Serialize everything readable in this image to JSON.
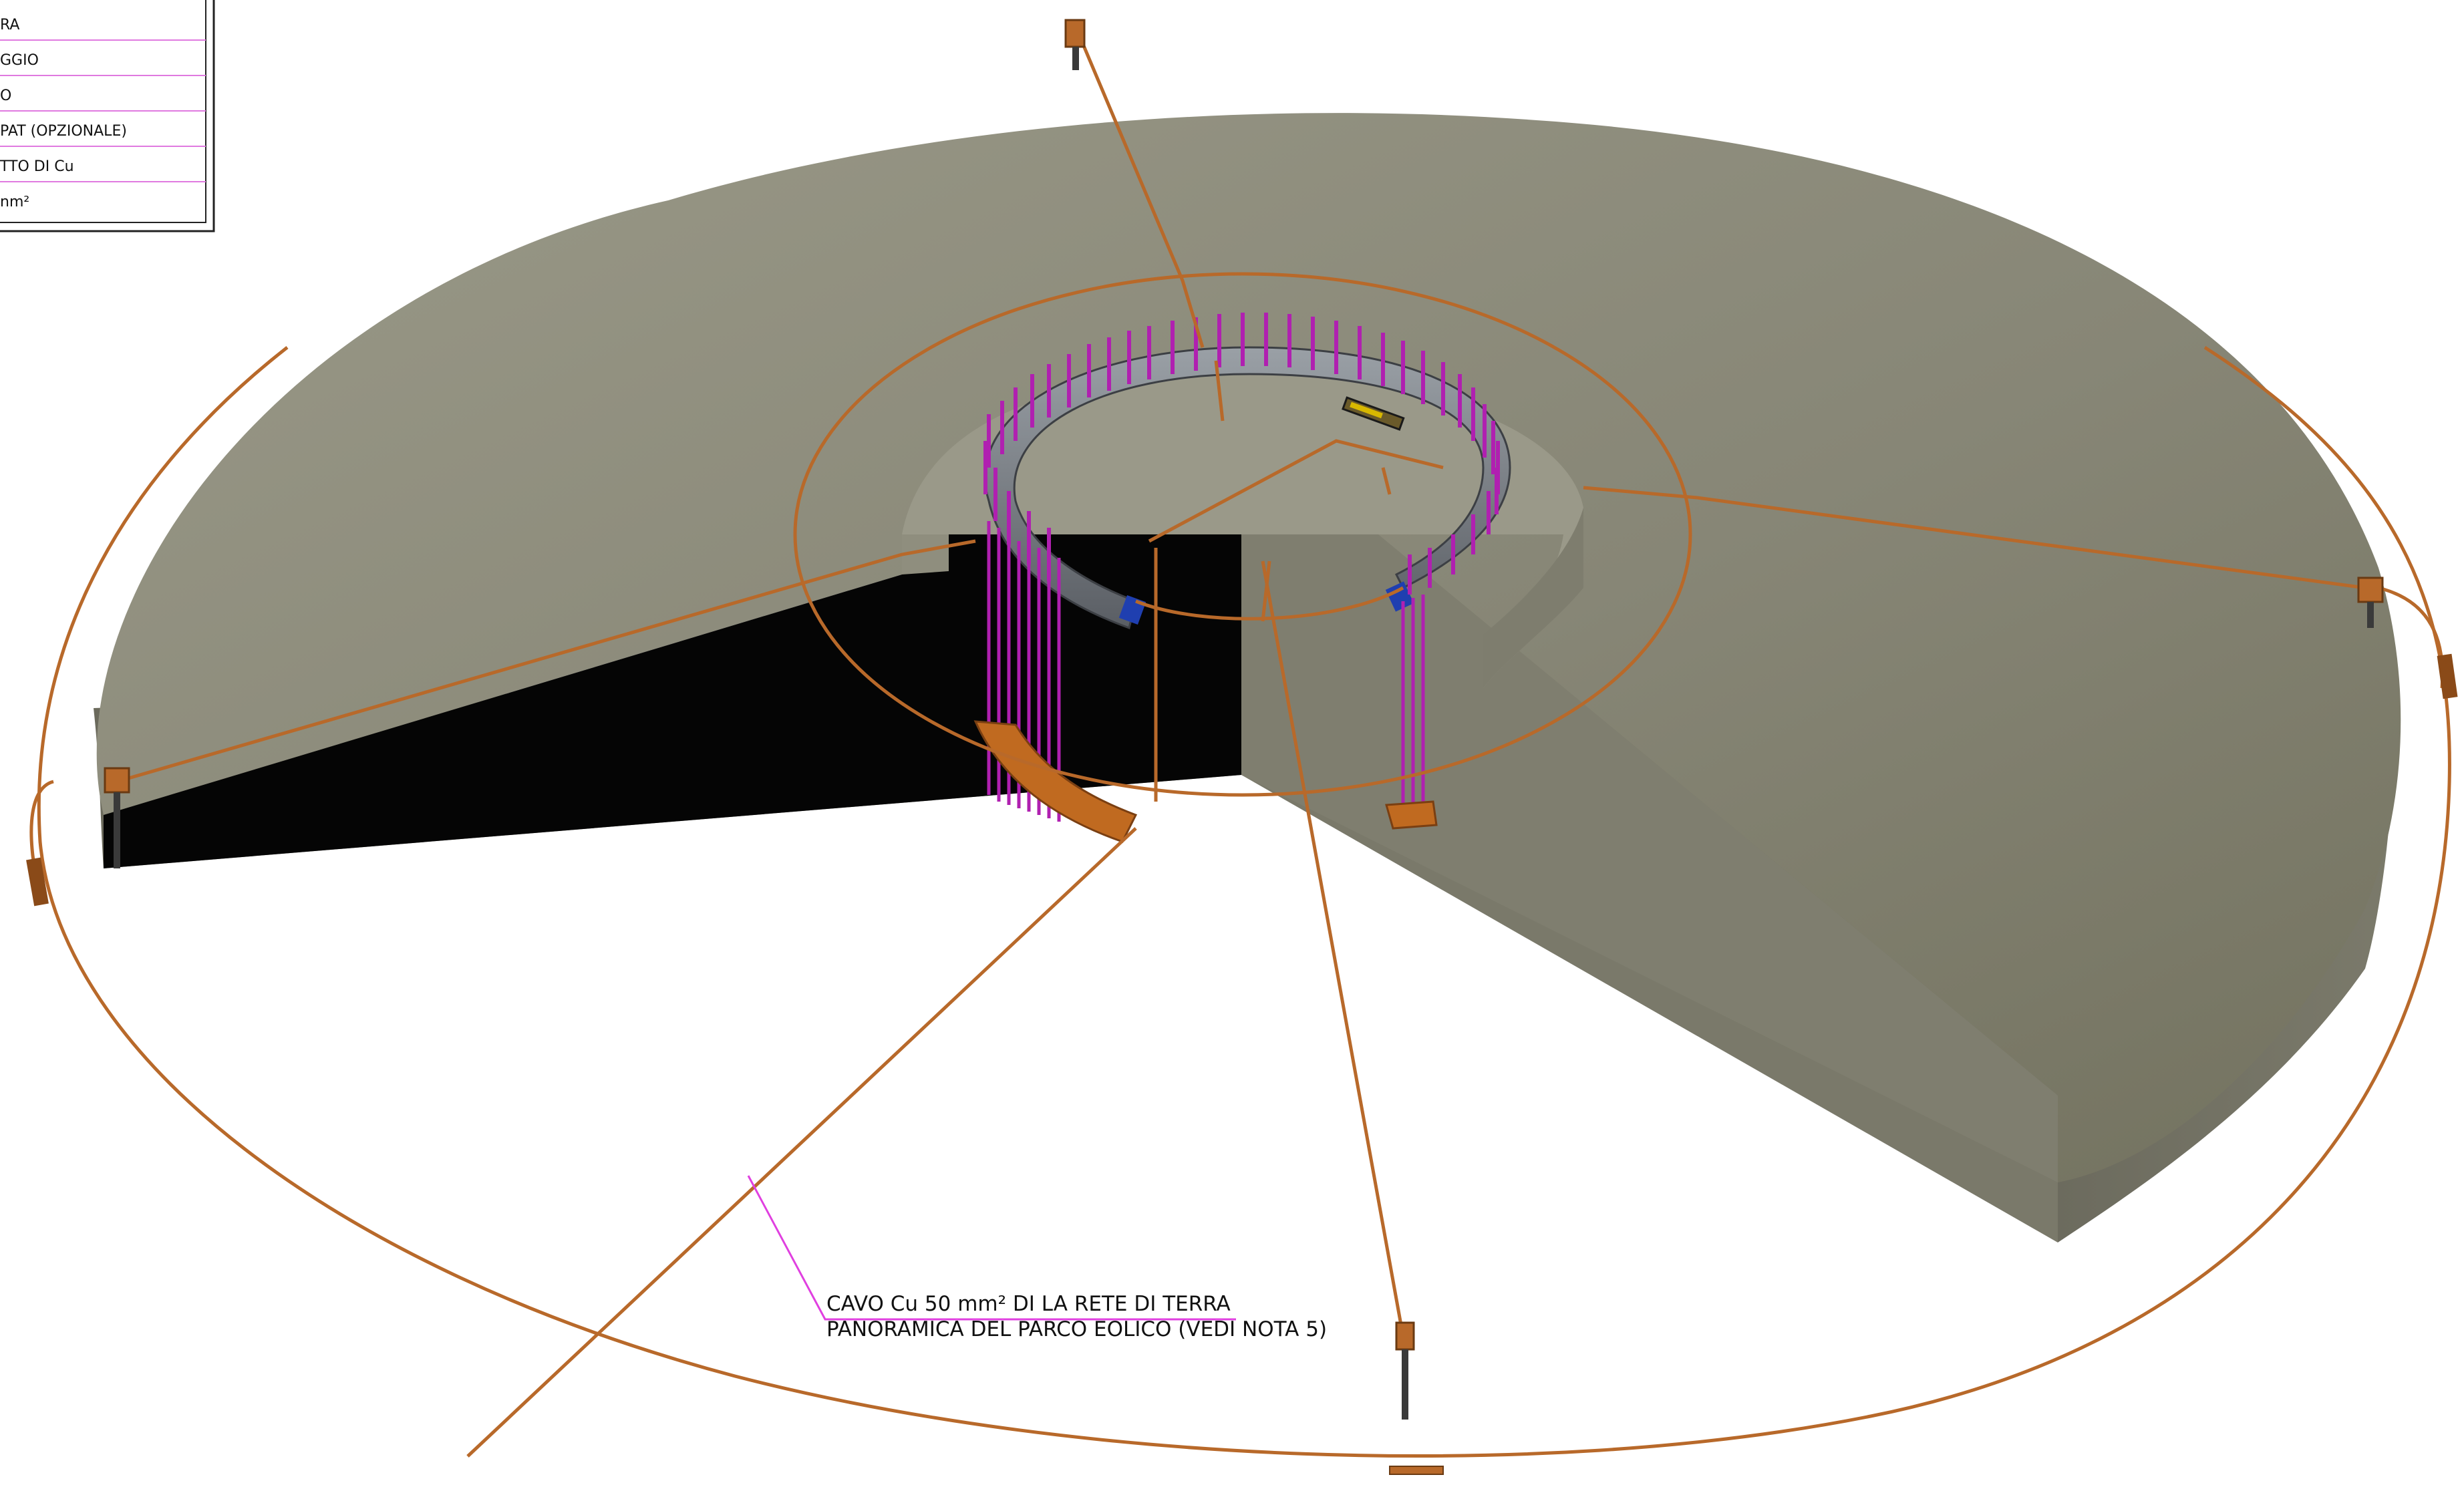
{
  "legend": {
    "rows": [
      "RA",
      "GGIO",
      "O",
      "PAT (OPZIONALE)",
      "TTO DI Cu",
      "nm²"
    ]
  },
  "annotation": {
    "line1": "CAVO Cu 50 mm² DI LA RETE DI TERRA",
    "line2": "PANORAMICA DEL PARCO EOLICO (VEDI NOTA 5)"
  },
  "colors": {
    "concrete_top": "#8b8a7b",
    "concrete_side": "#6f6e61",
    "concrete_dark": "#5f5e53",
    "copper": "#b8692a",
    "bolts": "#b020b0",
    "steel_ring": "#7a7e84",
    "leader": "#e040e0",
    "shadow": "#050505"
  }
}
